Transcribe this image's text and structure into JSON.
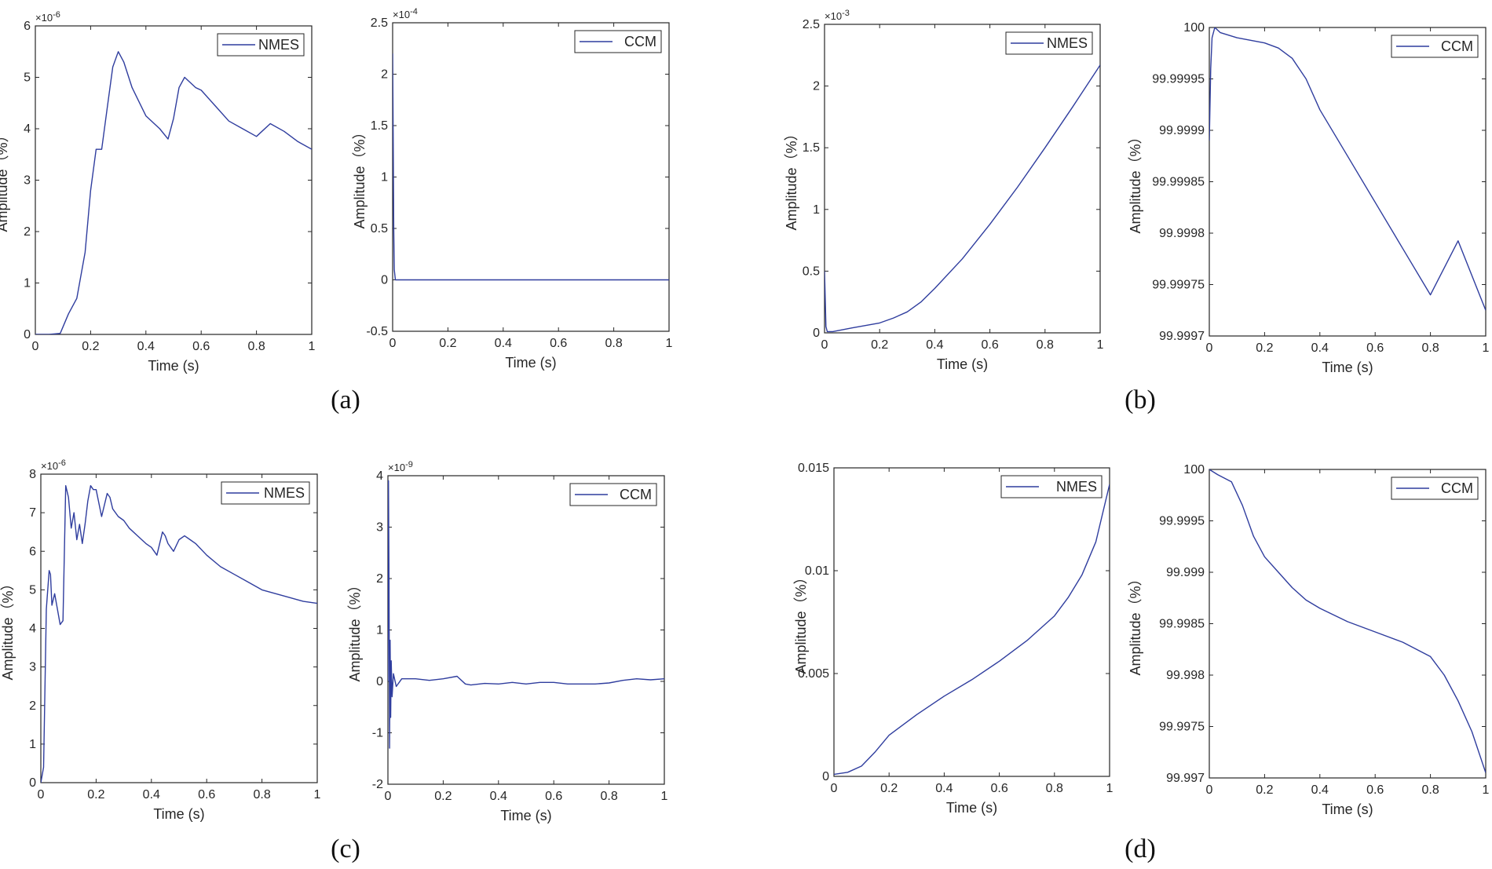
{
  "colors": {
    "series": "#2f3d9e",
    "axis": "#262626"
  },
  "panels": [
    {
      "label": "(a)"
    },
    {
      "label": "(b)"
    },
    {
      "label": "(c)"
    },
    {
      "label": "(d)"
    }
  ],
  "chart_data": [
    {
      "type": "line",
      "panel": "(a)",
      "legend": "NMES",
      "xlabel": "Time (s)",
      "ylabel": "Amplitude（%）",
      "exponent_base": "×10",
      "exponent_power": "-6",
      "xlim": [
        0,
        1
      ],
      "ylim": [
        0,
        6
      ],
      "xticks": [
        "0",
        "0.2",
        "0.4",
        "0.6",
        "0.8",
        "1"
      ],
      "yticks": [
        "0",
        "1",
        "2",
        "3",
        "4",
        "5",
        "6"
      ],
      "x": [
        0,
        0.05,
        0.09,
        0.12,
        0.15,
        0.18,
        0.2,
        0.22,
        0.24,
        0.26,
        0.28,
        0.3,
        0.32,
        0.35,
        0.4,
        0.45,
        0.48,
        0.5,
        0.52,
        0.54,
        0.56,
        0.58,
        0.6,
        0.65,
        0.7,
        0.75,
        0.8,
        0.82,
        0.85,
        0.9,
        0.95,
        1.0
      ],
      "y": [
        0,
        0,
        0.02,
        0.4,
        0.7,
        1.6,
        2.8,
        3.6,
        3.6,
        4.4,
        5.2,
        5.5,
        5.3,
        4.8,
        4.25,
        4.0,
        3.8,
        4.2,
        4.8,
        5.0,
        4.9,
        4.8,
        4.75,
        4.45,
        4.15,
        4.0,
        3.85,
        3.95,
        4.1,
        3.95,
        3.75,
        3.6
      ]
    },
    {
      "type": "line",
      "panel": "(a)",
      "legend": "CCM",
      "xlabel": "Time (s)",
      "ylabel": "Amplitude（%）",
      "exponent_base": "×10",
      "exponent_power": "-4",
      "xlim": [
        0,
        1
      ],
      "ylim": [
        -0.5,
        2.5
      ],
      "xticks": [
        "0",
        "0.2",
        "0.4",
        "0.6",
        "0.8",
        "1"
      ],
      "yticks": [
        "-0.5",
        "0",
        "0.5",
        "1",
        "1.5",
        "2",
        "2.5"
      ],
      "x": [
        0,
        0.002,
        0.004,
        0.006,
        0.01,
        0.05,
        0.5,
        1.0
      ],
      "y": [
        2.2,
        1.4,
        0.5,
        0.1,
        0,
        0,
        0,
        0
      ]
    },
    {
      "type": "line",
      "panel": "(b)",
      "legend": "NMES",
      "xlabel": "Time (s)",
      "ylabel": "Amplitude（%）",
      "exponent_base": "×10",
      "exponent_power": "-3",
      "xlim": [
        0,
        1
      ],
      "ylim": [
        0,
        2.5
      ],
      "xticks": [
        "0",
        "0.2",
        "0.4",
        "0.6",
        "0.8",
        "1"
      ],
      "yticks": [
        "0",
        "0.5",
        "1",
        "1.5",
        "2",
        "2.5"
      ],
      "x": [
        0,
        0.005,
        0.01,
        0.03,
        0.1,
        0.2,
        0.25,
        0.3,
        0.35,
        0.4,
        0.5,
        0.6,
        0.7,
        0.8,
        0.9,
        1.0
      ],
      "y": [
        0.5,
        0.05,
        0.01,
        0.01,
        0.04,
        0.08,
        0.12,
        0.17,
        0.25,
        0.36,
        0.6,
        0.88,
        1.18,
        1.5,
        1.83,
        2.17
      ]
    },
    {
      "type": "line",
      "panel": "(b)",
      "legend": "CCM",
      "xlabel": "Time (s)",
      "ylabel": "Amplitude（%）",
      "exponent_base": "",
      "exponent_power": "",
      "xlim": [
        0,
        1
      ],
      "ylim": [
        99.9997,
        100
      ],
      "xticks": [
        "0",
        "0.2",
        "0.4",
        "0.6",
        "0.8",
        "1"
      ],
      "yticks": [
        "99.9997",
        "99.99975",
        "99.9998",
        "99.99985",
        "99.9999",
        "99.99995",
        "100"
      ],
      "x": [
        0,
        0.005,
        0.01,
        0.02,
        0.04,
        0.1,
        0.2,
        0.25,
        0.3,
        0.35,
        0.4,
        0.5,
        0.6,
        0.7,
        0.8,
        0.9,
        1.0
      ],
      "y": [
        99.99989,
        99.99996,
        99.99999,
        100.0,
        99.999995,
        99.99999,
        99.999985,
        99.99998,
        99.99997,
        99.99995,
        99.99992,
        99.999875,
        99.99983,
        99.999785,
        99.99974,
        99.9997925,
        99.999725
      ]
    },
    {
      "type": "line",
      "panel": "(c)",
      "legend": "NMES",
      "xlabel": "Time (s)",
      "ylabel": "Amplitude（%）",
      "exponent_base": "×10",
      "exponent_power": "-6",
      "xlim": [
        0,
        1
      ],
      "ylim": [
        0,
        8
      ],
      "xticks": [
        "0",
        "0.2",
        "0.4",
        "0.6",
        "0.8",
        "1"
      ],
      "yticks": [
        "0",
        "1",
        "2",
        "3",
        "4",
        "5",
        "6",
        "7",
        "8"
      ],
      "x": [
        0,
        0.01,
        0.02,
        0.03,
        0.035,
        0.04,
        0.05,
        0.06,
        0.07,
        0.08,
        0.09,
        0.1,
        0.11,
        0.12,
        0.13,
        0.14,
        0.15,
        0.16,
        0.17,
        0.18,
        0.19,
        0.2,
        0.22,
        0.24,
        0.25,
        0.26,
        0.28,
        0.3,
        0.32,
        0.35,
        0.38,
        0.4,
        0.42,
        0.44,
        0.45,
        0.46,
        0.48,
        0.5,
        0.52,
        0.54,
        0.56,
        0.6,
        0.65,
        0.7,
        0.75,
        0.8,
        0.85,
        0.9,
        0.95,
        1.0
      ],
      "y": [
        0,
        0.4,
        4.5,
        5.5,
        5.4,
        4.6,
        4.9,
        4.5,
        4.1,
        4.2,
        7.7,
        7.4,
        6.6,
        7.0,
        6.3,
        6.7,
        6.2,
        6.7,
        7.3,
        7.7,
        7.6,
        7.6,
        6.9,
        7.5,
        7.4,
        7.1,
        6.9,
        6.8,
        6.6,
        6.4,
        6.2,
        6.1,
        5.9,
        6.5,
        6.4,
        6.2,
        6.0,
        6.3,
        6.4,
        6.3,
        6.2,
        5.9,
        5.6,
        5.4,
        5.2,
        5.0,
        4.9,
        4.8,
        4.7,
        4.65
      ]
    },
    {
      "type": "line",
      "panel": "(c)",
      "legend": "CCM",
      "xlabel": "Time (s)",
      "ylabel": "Amplitude（%）",
      "exponent_base": "×10",
      "exponent_power": "-9",
      "xlim": [
        0,
        1
      ],
      "ylim": [
        -2,
        4
      ],
      "xticks": [
        "0",
        "0.2",
        "0.4",
        "0.6",
        "0.8",
        "1"
      ],
      "yticks": [
        "-2",
        "-1",
        "0",
        "1",
        "2",
        "3",
        "4"
      ],
      "x": [
        0,
        0.002,
        0.004,
        0.006,
        0.008,
        0.01,
        0.012,
        0.015,
        0.02,
        0.03,
        0.05,
        0.1,
        0.15,
        0.2,
        0.25,
        0.28,
        0.3,
        0.35,
        0.4,
        0.45,
        0.5,
        0.55,
        0.6,
        0.65,
        0.7,
        0.75,
        0.8,
        0.85,
        0.9,
        0.95,
        1.0
      ],
      "y": [
        0,
        3.9,
        2.0,
        -1.3,
        0.8,
        -0.7,
        0.4,
        -0.3,
        0.15,
        -0.1,
        0.05,
        0.05,
        0.02,
        0.05,
        0.1,
        -0.05,
        -0.07,
        -0.04,
        -0.05,
        -0.02,
        -0.05,
        -0.02,
        -0.02,
        -0.05,
        -0.05,
        -0.05,
        -0.03,
        0.02,
        0.05,
        0.03,
        0.05
      ]
    },
    {
      "type": "line",
      "panel": "(d)",
      "legend": "NMES",
      "xlabel": "Time (s)",
      "ylabel": "Amplitude（%）",
      "exponent_base": "",
      "exponent_power": "",
      "xlim": [
        0,
        1
      ],
      "ylim": [
        0,
        0.015
      ],
      "xticks": [
        "0",
        "0.2",
        "0.4",
        "0.6",
        "0.8",
        "1"
      ],
      "yticks": [
        "0",
        "0.005",
        "0.01",
        "0.015"
      ],
      "x": [
        0,
        0.05,
        0.1,
        0.15,
        0.2,
        0.3,
        0.4,
        0.5,
        0.6,
        0.7,
        0.8,
        0.85,
        0.9,
        0.95,
        1.0
      ],
      "y": [
        0.0001,
        0.0002,
        0.0005,
        0.0012,
        0.002,
        0.003,
        0.0039,
        0.0047,
        0.0056,
        0.0066,
        0.0078,
        0.0087,
        0.0098,
        0.0114,
        0.0142
      ]
    },
    {
      "type": "line",
      "panel": "(d)",
      "legend": "CCM",
      "xlabel": "Time (s)",
      "ylabel": "Amplitude（%）",
      "exponent_base": "",
      "exponent_power": "",
      "xlim": [
        0,
        1
      ],
      "ylim": [
        99.997,
        100
      ],
      "xticks": [
        "0",
        "0.2",
        "0.4",
        "0.6",
        "0.8",
        "1"
      ],
      "yticks": [
        "99.997",
        "99.9975",
        "99.998",
        "99.9985",
        "99.999",
        "99.9995",
        "100"
      ],
      "x": [
        0,
        0.03,
        0.08,
        0.12,
        0.16,
        0.2,
        0.25,
        0.3,
        0.35,
        0.4,
        0.5,
        0.6,
        0.7,
        0.8,
        0.85,
        0.9,
        0.95,
        1.0
      ],
      "y": [
        100.0,
        99.99995,
        99.99988,
        99.99965,
        99.99935,
        99.99915,
        99.999,
        99.99885,
        99.99873,
        99.99865,
        99.99852,
        99.99842,
        99.99832,
        99.99818,
        99.998,
        99.99775,
        99.99745,
        99.99705
      ]
    }
  ]
}
